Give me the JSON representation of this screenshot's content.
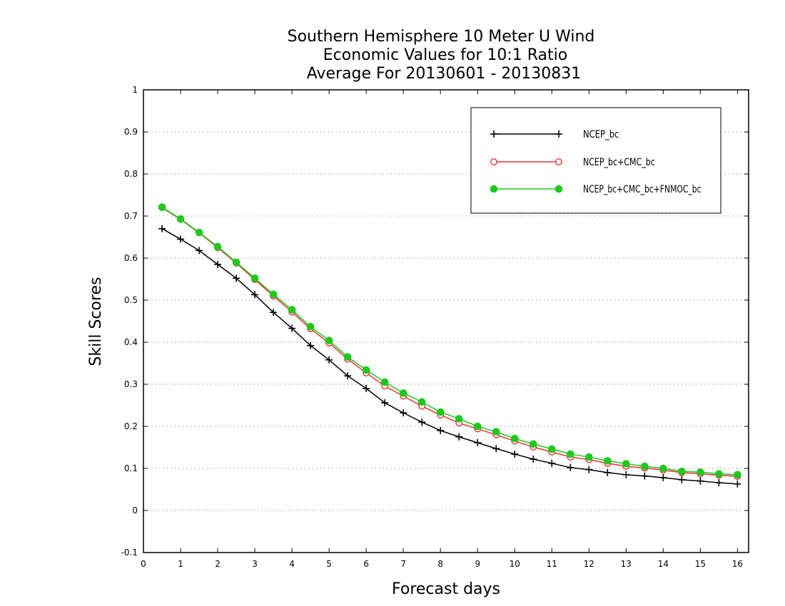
{
  "chart_data": {
    "type": "line",
    "title_lines": [
      "Southern Hemisphere 10 Meter U Wind",
      "Economic Values for 10:1 Ratio",
      "Average For 20130601 - 20130831"
    ],
    "xlabel": "Forecast days",
    "ylabel": "Skill Scores",
    "xlim": [
      0,
      16.3
    ],
    "ylim": [
      -0.1,
      1
    ],
    "x_ticks": [
      0,
      1,
      2,
      3,
      4,
      5,
      6,
      7,
      8,
      9,
      10,
      11,
      12,
      13,
      14,
      15,
      16
    ],
    "y_ticks": [
      -0.1,
      0,
      0.1,
      0.2,
      0.3,
      0.4,
      0.5,
      0.6,
      0.7,
      0.8,
      0.9,
      1
    ],
    "y_tick_labels": [
      "-0.1",
      "0",
      "0.1",
      "0.2",
      "0.3",
      "0.4",
      "0.5",
      "0.6",
      "0.7",
      "0.8",
      "0.9",
      "1"
    ],
    "grid": true,
    "legend_position": "top-right",
    "x": [
      0.5,
      1,
      1.5,
      2,
      2.5,
      3,
      3.5,
      4,
      4.5,
      5,
      5.5,
      6,
      6.5,
      7,
      7.5,
      8,
      8.5,
      9,
      9.5,
      10,
      10.5,
      11,
      11.5,
      12,
      12.5,
      13,
      13.5,
      14,
      14.5,
      15,
      15.5,
      16
    ],
    "series": [
      {
        "name": "NCEP_bc",
        "color": "#000000",
        "marker": "plus",
        "values": [
          0.67,
          0.645,
          0.618,
          0.585,
          0.552,
          0.513,
          0.471,
          0.433,
          0.392,
          0.358,
          0.32,
          0.29,
          0.256,
          0.232,
          0.21,
          0.19,
          0.175,
          0.161,
          0.147,
          0.134,
          0.122,
          0.112,
          0.102,
          0.097,
          0.09,
          0.085,
          0.082,
          0.078,
          0.073,
          0.07,
          0.066,
          0.063
        ]
      },
      {
        "name": "NCEP_bc+CMC_bc",
        "color": "#e8332e",
        "marker": "open-circle",
        "values": [
          0.72,
          0.692,
          0.66,
          0.625,
          0.588,
          0.549,
          0.51,
          0.472,
          0.432,
          0.398,
          0.36,
          0.327,
          0.296,
          0.272,
          0.248,
          0.227,
          0.208,
          0.194,
          0.18,
          0.165,
          0.151,
          0.139,
          0.127,
          0.121,
          0.112,
          0.105,
          0.101,
          0.096,
          0.09,
          0.087,
          0.084,
          0.081
        ]
      },
      {
        "name": "NCEP_bc+CMC_bc+FNMOC_bc",
        "color": "#1ec81e",
        "marker": "filled-circle",
        "values": [
          0.721,
          0.693,
          0.661,
          0.627,
          0.59,
          0.552,
          0.514,
          0.477,
          0.437,
          0.404,
          0.365,
          0.334,
          0.305,
          0.279,
          0.258,
          0.234,
          0.218,
          0.2,
          0.187,
          0.171,
          0.158,
          0.146,
          0.134,
          0.127,
          0.118,
          0.111,
          0.105,
          0.1,
          0.093,
          0.091,
          0.087,
          0.085
        ]
      }
    ]
  }
}
